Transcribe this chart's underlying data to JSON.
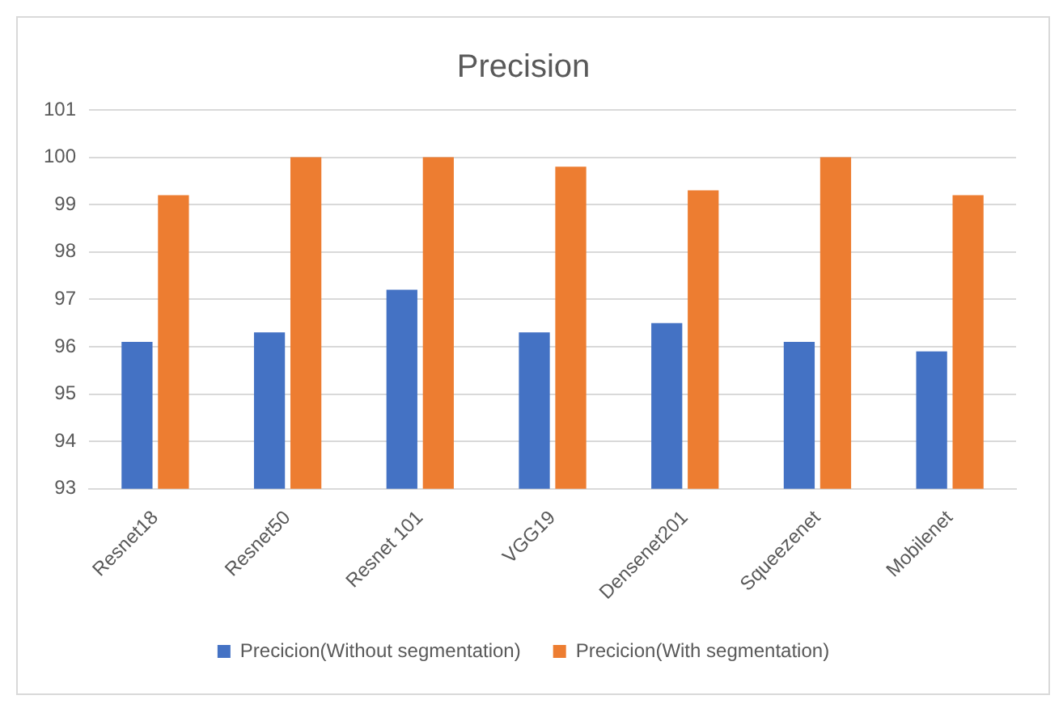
{
  "chart_data": {
    "type": "bar",
    "title": "Precision",
    "categories": [
      "Resnet18",
      "Resnet50",
      "Resnet 101",
      "VGG19",
      "Densenet201",
      "Squeezenet",
      "Mobilenet"
    ],
    "series": [
      {
        "name": "Precicion(Without segmentation)",
        "color": "#4472c4",
        "values": [
          96.1,
          96.3,
          97.2,
          96.3,
          96.5,
          96.1,
          95.9
        ]
      },
      {
        "name": "Precicion(With segmentation)",
        "color": "#ed7d31",
        "values": [
          99.2,
          100,
          100,
          99.8,
          99.3,
          100,
          99.2
        ]
      }
    ],
    "ylim": [
      93,
      101
    ],
    "yticks": [
      93,
      94,
      95,
      96,
      97,
      98,
      99,
      100,
      101
    ],
    "grid": "y",
    "legend": "bottom"
  }
}
